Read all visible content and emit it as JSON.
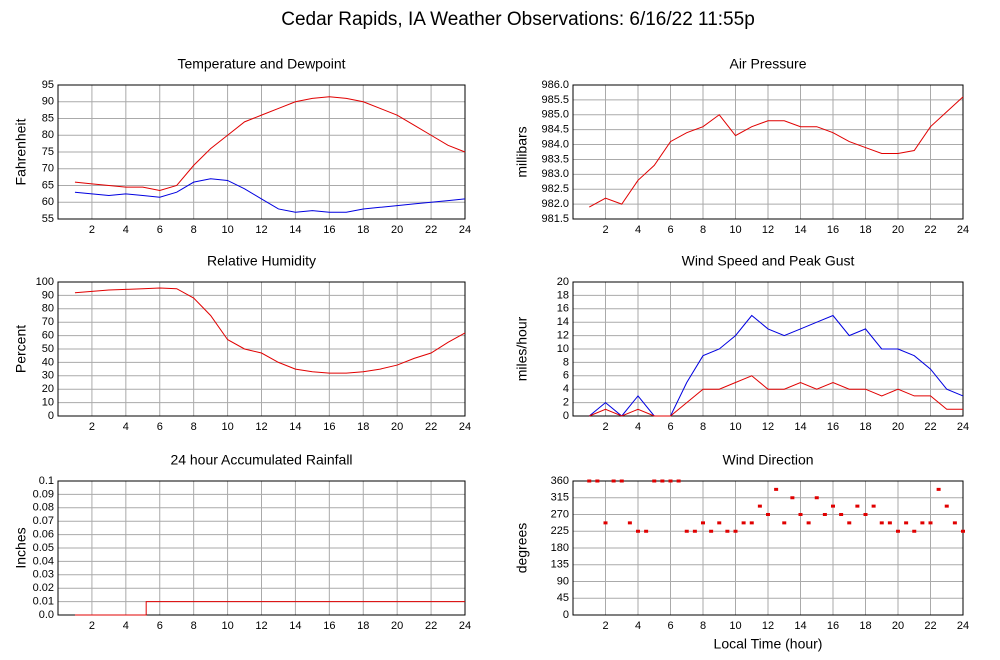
{
  "title": "Cedar Rapids, IA Weather Observations: 6/16/22 11:55p",
  "chart_data": [
    {
      "type": "line",
      "title": "Temperature and Dewpoint",
      "ylabel": "Fahrenheit",
      "x": [
        1,
        2,
        3,
        4,
        5,
        6,
        7,
        8,
        9,
        10,
        11,
        12,
        13,
        14,
        15,
        16,
        17,
        18,
        19,
        20,
        21,
        22,
        23,
        24
      ],
      "series": [
        {
          "color": "#e00000",
          "values": [
            66,
            65.5,
            65,
            64.5,
            64.5,
            63.5,
            65,
            71,
            76,
            80,
            84,
            86,
            88,
            90,
            91,
            91.5,
            91,
            90,
            88,
            86,
            83,
            80,
            77,
            75
          ]
        },
        {
          "color": "#0000e0",
          "values": [
            63,
            62.5,
            62,
            62.5,
            62,
            61.5,
            63,
            66,
            67,
            66.5,
            64,
            61,
            58,
            57,
            57.5,
            57,
            57,
            58,
            58.5,
            59,
            59.5,
            60,
            60.5,
            61
          ]
        }
      ],
      "xlim": [
        0,
        24
      ],
      "xticks": [
        2,
        4,
        6,
        8,
        10,
        12,
        14,
        16,
        18,
        20,
        22,
        24
      ],
      "ylim": [
        55,
        95
      ],
      "yticks": [
        55,
        60,
        65,
        70,
        75,
        80,
        85,
        90,
        95
      ],
      "grid": true
    },
    {
      "type": "line",
      "title": "Air Pressure",
      "ylabel": "millibars",
      "x": [
        1,
        2,
        3,
        4,
        5,
        6,
        7,
        8,
        9,
        10,
        11,
        12,
        13,
        14,
        15,
        16,
        17,
        18,
        19,
        20,
        21,
        22,
        23,
        24
      ],
      "series": [
        {
          "color": "#e00000",
          "values": [
            981.9,
            982.2,
            982.0,
            982.8,
            983.3,
            984.1,
            984.4,
            984.6,
            985.0,
            984.3,
            984.6,
            984.8,
            984.8,
            984.6,
            984.6,
            984.4,
            984.1,
            983.9,
            983.7,
            983.7,
            983.8,
            984.6,
            985.1,
            985.6
          ]
        }
      ],
      "xlim": [
        0,
        24
      ],
      "xticks": [
        2,
        4,
        6,
        8,
        10,
        12,
        14,
        16,
        18,
        20,
        22,
        24
      ],
      "ylim": [
        981.5,
        986
      ],
      "yticks": [
        981.5,
        {
          "value": 982,
          "label": "982.0"
        },
        982.5,
        {
          "value": 983,
          "label": "983.0"
        },
        983.5,
        {
          "value": 984,
          "label": "984.0"
        },
        984.5,
        {
          "value": 985,
          "label": "985.0"
        },
        985.5,
        {
          "value": 986,
          "label": "986.0"
        }
      ],
      "grid": true
    },
    {
      "type": "line",
      "title": "Relative Humidity",
      "ylabel": "Percent",
      "x": [
        1,
        2,
        3,
        4,
        5,
        6,
        7,
        8,
        9,
        10,
        11,
        12,
        13,
        14,
        15,
        16,
        17,
        18,
        19,
        20,
        21,
        22,
        23,
        24
      ],
      "series": [
        {
          "color": "#e00000",
          "values": [
            92,
            93,
            94,
            94.5,
            95,
            95.5,
            95,
            88,
            75,
            57,
            50,
            47,
            40,
            35,
            33,
            32,
            32,
            33,
            35,
            38,
            43,
            47,
            55,
            62
          ]
        }
      ],
      "xlim": [
        0,
        24
      ],
      "xticks": [
        2,
        4,
        6,
        8,
        10,
        12,
        14,
        16,
        18,
        20,
        22,
        24
      ],
      "ylim": [
        0,
        100
      ],
      "yticks": [
        0,
        10,
        20,
        30,
        40,
        50,
        60,
        70,
        80,
        90,
        100
      ],
      "grid": true
    },
    {
      "type": "line",
      "title": "Wind Speed and Peak Gust",
      "ylabel": "miles/hour",
      "x": [
        1,
        2,
        3,
        4,
        5,
        6,
        7,
        8,
        9,
        10,
        11,
        12,
        13,
        14,
        15,
        16,
        17,
        18,
        19,
        20,
        21,
        22,
        23,
        24
      ],
      "series": [
        {
          "color": "#0000e0",
          "values": [
            0,
            2,
            0,
            3,
            0,
            0,
            5,
            9,
            10,
            12,
            15,
            13,
            12,
            13,
            14,
            15,
            12,
            13,
            10,
            10,
            9,
            7,
            4,
            3
          ]
        },
        {
          "color": "#e00000",
          "values": [
            0,
            1,
            0,
            1,
            0,
            0,
            2,
            4,
            4,
            5,
            6,
            4,
            4,
            5,
            4,
            5,
            4,
            4,
            3,
            4,
            3,
            3,
            1,
            1
          ]
        }
      ],
      "xlim": [
        0,
        24
      ],
      "xticks": [
        2,
        4,
        6,
        8,
        10,
        12,
        14,
        16,
        18,
        20,
        22,
        24
      ],
      "ylim": [
        0,
        20
      ],
      "yticks": [
        0,
        2,
        4,
        6,
        8,
        10,
        12,
        14,
        16,
        18,
        20
      ],
      "grid": true
    },
    {
      "type": "line",
      "title": "24 hour Accumulated Rainfall",
      "ylabel": "Inches",
      "x": [
        1,
        5.2,
        5.2,
        24
      ],
      "series": [
        {
          "color": "#e00000",
          "values": [
            0,
            0,
            0.01,
            0.01
          ]
        }
      ],
      "xlim": [
        0,
        24
      ],
      "xticks": [
        2,
        4,
        6,
        8,
        10,
        12,
        14,
        16,
        18,
        20,
        22,
        24
      ],
      "ylim": [
        0,
        0.1
      ],
      "yticks": [
        {
          "value": 0,
          "label": "0.0"
        },
        0.01,
        0.02,
        0.03,
        0.04,
        0.05,
        0.06,
        0.07,
        0.08,
        0.09,
        0.1
      ],
      "grid": true
    },
    {
      "type": "scatter",
      "title": "Wind Direction",
      "ylabel": "degrees",
      "xlabel": "Local Time (hour)",
      "x": [
        1,
        1.5,
        2,
        2.5,
        3,
        3.5,
        4,
        4.5,
        5,
        5.5,
        6,
        6.5,
        7,
        7.5,
        8,
        8.5,
        9,
        9.5,
        10,
        10.5,
        11,
        11.5,
        12,
        12.5,
        13,
        13.5,
        14,
        14.5,
        15,
        15.5,
        16,
        16.5,
        17,
        17.5,
        18,
        18.5,
        19,
        19.5,
        20,
        20.5,
        21,
        21.5,
        22,
        22.5,
        23,
        23.5,
        24
      ],
      "series": [
        {
          "color": "#e00000",
          "values": [
            360,
            360,
            247.5,
            360,
            360,
            247.5,
            225,
            225,
            360,
            360,
            360,
            360,
            225,
            225,
            247.5,
            225,
            247.5,
            225,
            225,
            247.5,
            247.5,
            292.5,
            270,
            337.5,
            247.5,
            315,
            270,
            247.5,
            315,
            270,
            292.5,
            270,
            247.5,
            292.5,
            270,
            292.5,
            247.5,
            247.5,
            225,
            247.5,
            225,
            247.5,
            247.5,
            337.5,
            292.5,
            247.5,
            225
          ]
        }
      ],
      "xlim": [
        0,
        24
      ],
      "xticks": [
        2,
        4,
        6,
        8,
        10,
        12,
        14,
        16,
        18,
        20,
        22,
        24
      ],
      "ylim": [
        0,
        360
      ],
      "yticks": [
        0,
        45,
        90,
        135,
        180,
        225,
        270,
        315,
        360
      ],
      "grid": true
    }
  ]
}
